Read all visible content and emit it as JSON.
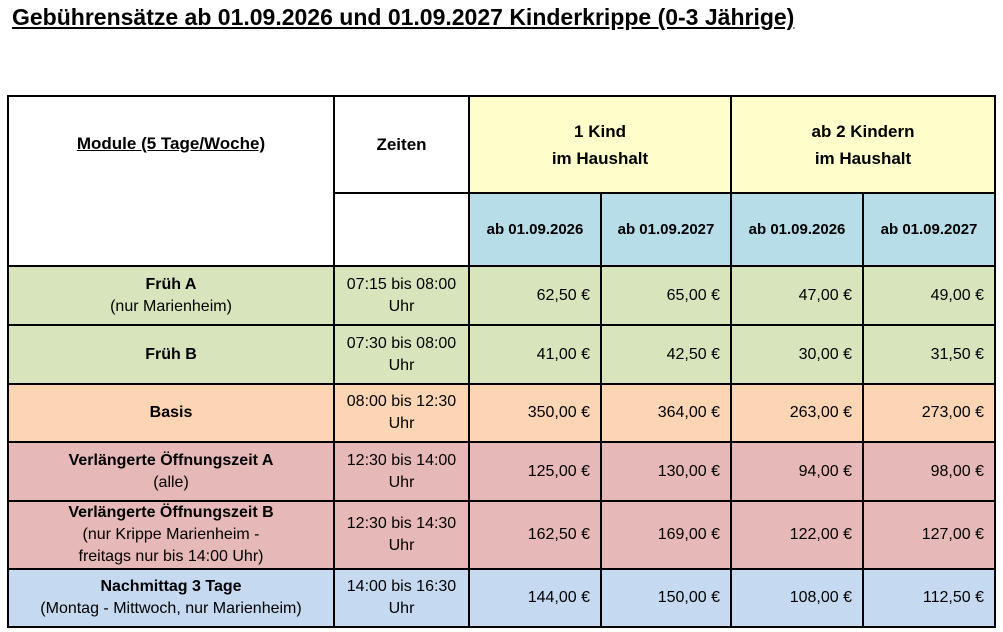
{
  "title": "Gebührensätze ab 01.09.2026 und 01.09.2027 Kinderkrippe (0-3 Jährige)",
  "table": {
    "header": {
      "module": "Module (5 Tage/Woche)",
      "times": "Zeiten",
      "groups": [
        [
          "1 Kind",
          "im Haushalt"
        ],
        [
          "ab 2 Kindern",
          "im Haushalt"
        ]
      ],
      "dates": [
        "ab 01.09.2026",
        "ab 01.09.2027",
        "ab 01.09.2026",
        "ab 01.09.2027"
      ]
    },
    "rows": [
      {
        "name": "Früh A",
        "note": [
          "(nur Marienheim)"
        ],
        "time": "07:15 bis 08:00 Uhr",
        "fees": [
          "62,50 €",
          "65,00 €",
          "47,00 €",
          "49,00 €"
        ]
      },
      {
        "name": "Früh B",
        "note": [],
        "time": "07:30 bis 08:00 Uhr",
        "fees": [
          "41,00 €",
          "42,50 €",
          "30,00 €",
          "31,50 €"
        ]
      },
      {
        "name": "Basis",
        "note": [],
        "time": "08:00 bis 12:30 Uhr",
        "fees": [
          "350,00 €",
          "364,00 €",
          "263,00 €",
          "273,00 €"
        ]
      },
      {
        "name": "Verlängerte Öffnungszeit A",
        "note": [
          "(alle)"
        ],
        "time": "12:30 bis 14:00 Uhr",
        "fees": [
          "125,00 €",
          "130,00 €",
          "94,00 €",
          "98,00 €"
        ]
      },
      {
        "name": "Verlängerte Öffnungszeit B",
        "note": [
          "(nur Krippe Marienheim -",
          "freitags nur bis 14:00 Uhr)"
        ],
        "time": "12:30 bis 14:30 Uhr",
        "fees": [
          "162,50 €",
          "169,00 €",
          "122,00 €",
          "127,00 €"
        ]
      },
      {
        "name": "Nachmittag 3 Tage",
        "note": [
          "(Montag - Mittwoch, nur Marienheim)"
        ],
        "time": "14:00 bis 16:30 Uhr",
        "fees": [
          "144,00 €",
          "150,00 €",
          "108,00 €",
          "112,50 €"
        ]
      }
    ]
  }
}
